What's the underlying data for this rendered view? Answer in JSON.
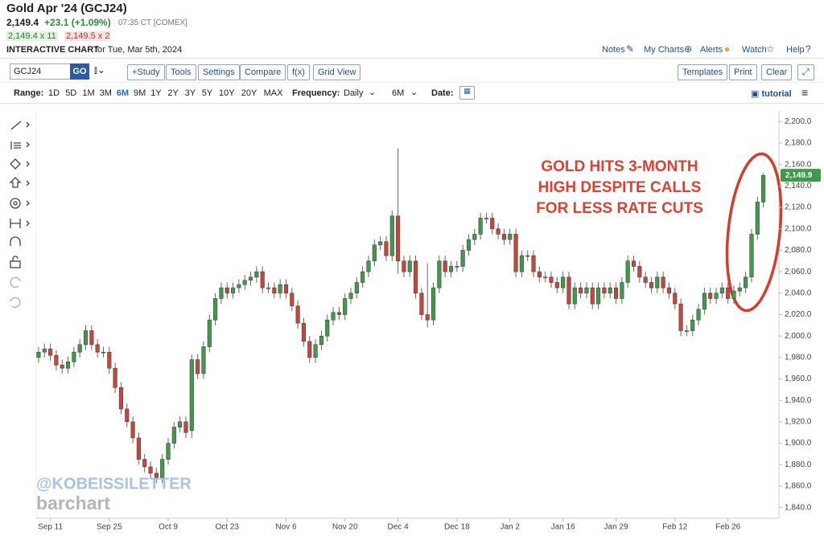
{
  "header": {
    "title": "Gold Apr '24 (GCJ24)",
    "price": "2,149.4",
    "change": "+23.1 (+1.09%)",
    "time": "07:35 CT [COMEX]",
    "bid": "2,149.4 x 11",
    "ask": "2,149.5 x 2",
    "chart_label": "INTERACTIVE CHART",
    "chart_date": "for Tue, Mar 5th, 2024",
    "links": [
      "Notes",
      "My Charts",
      "Alerts",
      "Watch",
      "Help"
    ]
  },
  "toolbar": {
    "symbol": "GCJ24",
    "go": "GO",
    "buttons": [
      "+Study",
      "Tools",
      "Settings",
      "Compare",
      "f(x)",
      "Grid View"
    ],
    "right_buttons": [
      "Templates",
      "Print",
      "Clear"
    ]
  },
  "range_bar": {
    "range_label": "Range:",
    "ranges": [
      "1D",
      "5D",
      "1M",
      "3M",
      "6M",
      "9M",
      "1Y",
      "2Y",
      "3Y",
      "5Y",
      "10Y",
      "20Y",
      "MAX"
    ],
    "active": 4,
    "frequency_label": "Frequency:",
    "frequency": "Daily",
    "period": "6M",
    "date_label": "Date:",
    "tutorial": "tutorial"
  },
  "chart_data": {
    "type": "candlestick",
    "up_color": "#3f9b4a",
    "down_color": "#c6463b",
    "annotation": [
      "GOLD HITS 3-MONTH",
      "HIGH DESPITE CALLS",
      "FOR LESS RATE CUTS"
    ],
    "last_price": {
      "value": 2149.9,
      "label": "2,149.9"
    },
    "watermarks": [
      "@KOBEISSILETTER",
      "barchart"
    ],
    "xlim": [
      -0.4,
      123.6
    ],
    "xticks": [
      {
        "value": 2,
        "label": "Sep 11"
      },
      {
        "value": 12,
        "label": "Sep 25"
      },
      {
        "value": 22,
        "label": "Oct 9"
      },
      {
        "value": 32,
        "label": "Oct 23"
      },
      {
        "value": 42,
        "label": "Nov 6"
      },
      {
        "value": 52,
        "label": "Nov 20"
      },
      {
        "value": 61,
        "label": "Dec 4"
      },
      {
        "value": 71,
        "label": "Dec 18"
      },
      {
        "value": 80,
        "label": "Jan 2"
      },
      {
        "value": 89,
        "label": "Jan 16"
      },
      {
        "value": 98,
        "label": "Jan 29"
      },
      {
        "value": 108,
        "label": "Feb 12"
      },
      {
        "value": 117,
        "label": "Feb 26"
      }
    ],
    "ylim": [
      1830,
      2210
    ],
    "yticks": [
      {
        "value": 1840,
        "label": "1,840.0"
      },
      {
        "value": 1860,
        "label": "1,860.0"
      },
      {
        "value": 1880,
        "label": "1,880.0"
      },
      {
        "value": 1900,
        "label": "1,900.0"
      },
      {
        "value": 1920,
        "label": "1,920.0"
      },
      {
        "value": 1940,
        "label": "1,940.0"
      },
      {
        "value": 1960,
        "label": "1,960.0"
      },
      {
        "value": 1980,
        "label": "1,980.0"
      },
      {
        "value": 2000,
        "label": "2,000.0"
      },
      {
        "value": 2020,
        "label": "2,020.0"
      },
      {
        "value": 2040,
        "label": "2,040.0"
      },
      {
        "value": 2060,
        "label": "2,060.0"
      },
      {
        "value": 2080,
        "label": "2,080.0"
      },
      {
        "value": 2100,
        "label": "2,100.0"
      },
      {
        "value": 2120,
        "label": "2,120.0"
      },
      {
        "value": 2140,
        "label": "2,140.0"
      },
      {
        "value": 2160,
        "label": "2,160.0"
      },
      {
        "value": 2180,
        "label": "2,180.0"
      },
      {
        "value": 2200,
        "label": "2,200.0"
      }
    ],
    "open": [
      1980,
      1985,
      1988,
      1982,
      1973,
      1970,
      1976,
      1985,
      1992,
      2005,
      1992,
      1985,
      1985,
      1970,
      1952,
      1932,
      1920,
      1905,
      1885,
      1878,
      1872,
      1868,
      1885,
      1900,
      1915,
      1920,
      1912,
      1978,
      1965,
      1990,
      2015,
      2035,
      2045,
      2040,
      2045,
      2048,
      2052,
      2055,
      2060,
      2045,
      2045,
      2040,
      2048,
      2040,
      2028,
      2012,
      1995,
      1980,
      1992,
      2000,
      2015,
      2022,
      2020,
      2035,
      2040,
      2050,
      2060,
      2070,
      2085,
      2088,
      2075,
      2112,
      2070,
      2060,
      2070,
      2040,
      2020,
      2015,
      2045,
      2070,
      2060,
      2065,
      2065,
      2080,
      2090,
      2095,
      2110,
      2110,
      2100,
      2095,
      2090,
      2095,
      2060,
      2075,
      2075,
      2060,
      2055,
      2055,
      2050,
      2045,
      2055,
      2030,
      2045,
      2040,
      2045,
      2030,
      2045,
      2040,
      2045,
      2035,
      2050,
      2070,
      2065,
      2055,
      2050,
      2045,
      2055,
      2045,
      2040,
      2030,
      2005,
      2005,
      2015,
      2025,
      2040,
      2035,
      2040,
      2045,
      2035,
      2042,
      2045,
      2055,
      2095,
      2125
    ],
    "high": [
      1990,
      1993,
      1993,
      1987,
      1978,
      1981,
      1990,
      1997,
      2010,
      2010,
      1997,
      1990,
      1990,
      1975,
      1957,
      1937,
      1925,
      1910,
      1890,
      1883,
      1877,
      1890,
      1905,
      1920,
      1925,
      1925,
      1983,
      1983,
      1995,
      2020,
      2040,
      2050,
      2050,
      2050,
      2053,
      2057,
      2060,
      2065,
      2065,
      2050,
      2050,
      2053,
      2053,
      2045,
      2033,
      2017,
      2000,
      1997,
      2005,
      2020,
      2027,
      2027,
      2040,
      2045,
      2055,
      2065,
      2075,
      2090,
      2093,
      2093,
      2117,
      2175,
      2075,
      2075,
      2075,
      2045,
      2068,
      2050,
      2075,
      2075,
      2070,
      2070,
      2085,
      2095,
      2100,
      2115,
      2115,
      2115,
      2105,
      2100,
      2100,
      2100,
      2080,
      2080,
      2080,
      2065,
      2060,
      2060,
      2055,
      2060,
      2060,
      2050,
      2050,
      2050,
      2050,
      2050,
      2050,
      2050,
      2050,
      2055,
      2075,
      2075,
      2070,
      2060,
      2055,
      2060,
      2060,
      2050,
      2045,
      2035,
      2010,
      2020,
      2030,
      2045,
      2045,
      2045,
      2050,
      2050,
      2047,
      2050,
      2060,
      2100,
      2130,
      2152
    ],
    "low": [
      1975,
      1980,
      1977,
      1968,
      1965,
      1965,
      1971,
      1980,
      1987,
      1987,
      1980,
      1980,
      1965,
      1947,
      1927,
      1915,
      1900,
      1880,
      1873,
      1867,
      1863,
      1863,
      1880,
      1895,
      1910,
      1905,
      1905,
      1960,
      1960,
      1985,
      2010,
      2030,
      2035,
      2035,
      2040,
      2043,
      2047,
      2050,
      2040,
      2040,
      2035,
      2035,
      2035,
      2023,
      2007,
      1990,
      1975,
      1975,
      1987,
      1995,
      2010,
      2015,
      2015,
      2030,
      2035,
      2045,
      2055,
      2065,
      2080,
      2070,
      2070,
      2058,
      2055,
      2055,
      2035,
      2015,
      2008,
      2010,
      2040,
      2055,
      2055,
      2060,
      2060,
      2075,
      2085,
      2090,
      2105,
      2095,
      2090,
      2085,
      2085,
      2055,
      2055,
      2070,
      2055,
      2050,
      2050,
      2045,
      2040,
      2040,
      2025,
      2025,
      2035,
      2035,
      2025,
      2025,
      2035,
      2035,
      2030,
      2030,
      2045,
      2060,
      2050,
      2045,
      2040,
      2040,
      2040,
      2035,
      2025,
      2000,
      2000,
      2000,
      2010,
      2020,
      2030,
      2030,
      2035,
      2030,
      2030,
      2037,
      2040,
      2050,
      2090,
      2120
    ],
    "close": [
      1985,
      1988,
      1982,
      1973,
      1970,
      1976,
      1985,
      1992,
      2005,
      1992,
      1985,
      1985,
      1970,
      1952,
      1932,
      1920,
      1905,
      1885,
      1878,
      1872,
      1868,
      1885,
      1900,
      1915,
      1920,
      1910,
      1978,
      1965,
      1990,
      2015,
      2035,
      2045,
      2040,
      2045,
      2048,
      2052,
      2055,
      2060,
      2045,
      2045,
      2040,
      2048,
      2040,
      2028,
      2012,
      1995,
      1980,
      1992,
      2000,
      2015,
      2022,
      2020,
      2035,
      2040,
      2050,
      2060,
      2070,
      2085,
      2088,
      2075,
      2112,
      2070,
      2060,
      2070,
      2040,
      2020,
      2015,
      2045,
      2070,
      2060,
      2065,
      2065,
      2080,
      2090,
      2095,
      2110,
      2110,
      2100,
      2095,
      2090,
      2095,
      2060,
      2075,
      2075,
      2060,
      2055,
      2055,
      2050,
      2045,
      2055,
      2030,
      2045,
      2040,
      2045,
      2030,
      2045,
      2040,
      2045,
      2035,
      2050,
      2070,
      2065,
      2055,
      2050,
      2045,
      2055,
      2045,
      2040,
      2030,
      2005,
      2005,
      2015,
      2025,
      2040,
      2035,
      2040,
      2045,
      2035,
      2042,
      2045,
      2055,
      2095,
      2125,
      2149.9
    ]
  }
}
